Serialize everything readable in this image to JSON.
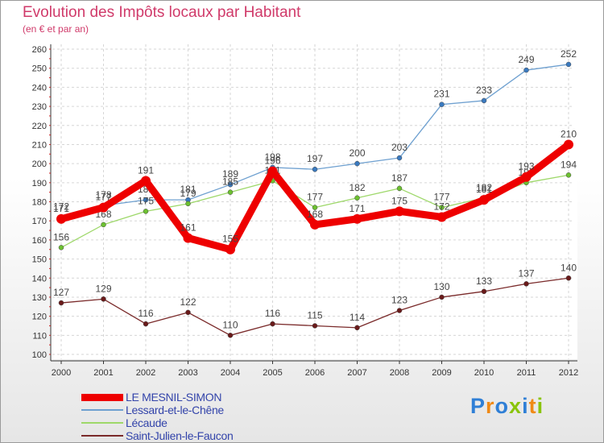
{
  "chart_data": {
    "type": "line",
    "title": "Evolution des Impôts locaux par Habitant",
    "subtitle": "(en € et par an)",
    "categories": [
      "2000",
      "2001",
      "2002",
      "2003",
      "2004",
      "2005",
      "2006",
      "2007",
      "2008",
      "2009",
      "2010",
      "2011",
      "2012"
    ],
    "ylim": [
      100,
      260
    ],
    "yticks": [
      100,
      110,
      120,
      130,
      140,
      150,
      160,
      170,
      180,
      190,
      200,
      210,
      220,
      230,
      240,
      250,
      260
    ],
    "grid": true,
    "legend_position": "bottom-left",
    "series": [
      {
        "name": "Lessard-et-le-Chêne",
        "color": "#6ea0d0",
        "marker": "#3a7ac0",
        "values": [
          172,
          178,
          181,
          181,
          189,
          198,
          197,
          200,
          203,
          231,
          233,
          249,
          252
        ]
      },
      {
        "name": "Lécaude",
        "color": "#9ed86a",
        "marker": "#6cc030",
        "values": [
          156,
          168,
          175,
          179,
          185,
          191,
          177,
          182,
          187,
          177,
          182,
          190,
          194
        ]
      },
      {
        "name": "Saint-Julien-le-Faucon",
        "color": "#7a2a2a",
        "marker": "#6a1a1a",
        "values": [
          127,
          129,
          116,
          122,
          110,
          116,
          115,
          114,
          123,
          130,
          133,
          137,
          140
        ]
      },
      {
        "name": "LE MESNIL-SIMON",
        "color": "#ee0000",
        "marker": "#ee0000",
        "values": [
          171,
          177,
          191,
          161,
          155,
          196,
          168,
          171,
          175,
          172,
          181,
          193,
          210
        ]
      }
    ]
  },
  "legend": {
    "items": [
      {
        "label": "LE MESNIL-SIMON",
        "color": "#ee0000"
      },
      {
        "label": "Lessard-et-le-Chêne",
        "color": "#6ea0d0"
      },
      {
        "label": "Lécaude",
        "color": "#9ed86a"
      },
      {
        "label": "Saint-Julien-le-Faucon",
        "color": "#7a2a2a"
      }
    ]
  },
  "logo": {
    "letters": [
      {
        "ch": "P",
        "color": "#2f7fd6"
      },
      {
        "ch": "r",
        "color": "#f08a16"
      },
      {
        "ch": "o",
        "color": "#2f7fd6"
      },
      {
        "ch": "x",
        "color": "#8ac40c"
      },
      {
        "ch": "i",
        "color": "#2f7fd6"
      },
      {
        "ch": "t",
        "color": "#f08a16"
      },
      {
        "ch": "i",
        "color": "#8ac40c"
      }
    ]
  }
}
